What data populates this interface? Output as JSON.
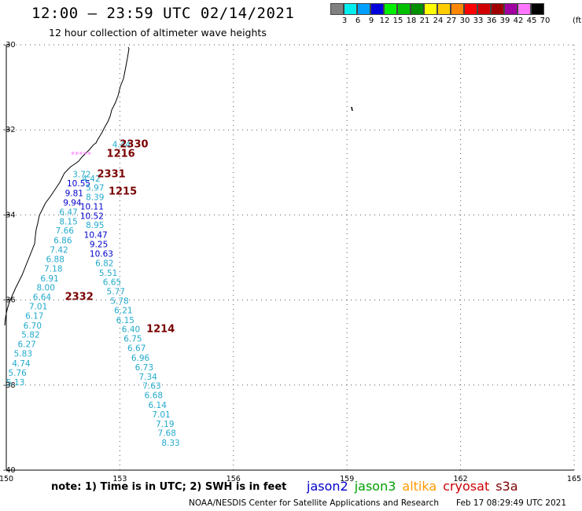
{
  "header": {
    "title": "12:00 – 23:59 UTC 02/14/2021",
    "subtitle": "12 hour collection of altimeter wave heights"
  },
  "legend": {
    "unit": "(ft)",
    "bins": [
      {
        "label": "3",
        "color": "#808080"
      },
      {
        "label": "6",
        "color": "#00eeee"
      },
      {
        "label": "9",
        "color": "#00a0ff"
      },
      {
        "label": "12",
        "color": "#0000dd"
      },
      {
        "label": "15",
        "color": "#00ee00"
      },
      {
        "label": "18",
        "color": "#00c000"
      },
      {
        "label": "21",
        "color": "#009000"
      },
      {
        "label": "24",
        "color": "#ffff00"
      },
      {
        "label": "27",
        "color": "#ffcc00"
      },
      {
        "label": "30",
        "color": "#ff8800"
      },
      {
        "label": "33",
        "color": "#ff0000"
      },
      {
        "label": "36",
        "color": "#d00000"
      },
      {
        "label": "39",
        "color": "#a00000"
      },
      {
        "label": "42",
        "color": "#a000a0"
      },
      {
        "label": "45",
        "color": "#ff77ff"
      },
      {
        "label": "70",
        "color": "#000000"
      }
    ]
  },
  "map": {
    "lat_ticks": [
      "-30",
      "-32",
      "-34",
      "-36",
      "-38",
      "-40"
    ],
    "lon_ticks": [
      "150",
      "153",
      "156",
      "159",
      "162",
      "165"
    ],
    "wave_points": [
      {
        "t": "4.44",
        "lon": 152.8,
        "lat": -32.41,
        "c": "#22aacc"
      },
      {
        "t": "*****",
        "lon": 151.7,
        "lat": -32.65,
        "c": "#ff77ff"
      },
      {
        "t": "3.72",
        "lon": 151.75,
        "lat": -33.11,
        "c": "#22aacc"
      },
      {
        "t": "4.42",
        "lon": 152.0,
        "lat": -33.22,
        "c": "#22aacc"
      },
      {
        "t": "10.55",
        "lon": 151.6,
        "lat": -33.33,
        "c": "#0000cc"
      },
      {
        "t": "5.97",
        "lon": 152.1,
        "lat": -33.43,
        "c": "#22aacc"
      },
      {
        "t": "9.81",
        "lon": 151.55,
        "lat": -33.56,
        "c": "#0000cc"
      },
      {
        "t": "8.39",
        "lon": 152.1,
        "lat": -33.65,
        "c": "#22aacc"
      },
      {
        "t": "9.94",
        "lon": 151.5,
        "lat": -33.78,
        "c": "#0000cc"
      },
      {
        "t": "10.11",
        "lon": 151.95,
        "lat": -33.87,
        "c": "#0000cc"
      },
      {
        "t": "6.47",
        "lon": 151.4,
        "lat": -34.0,
        "c": "#22aacc"
      },
      {
        "t": "10.52",
        "lon": 151.95,
        "lat": -34.09,
        "c": "#0000cc"
      },
      {
        "t": "8.15",
        "lon": 151.4,
        "lat": -34.22,
        "c": "#22aacc"
      },
      {
        "t": "8.95",
        "lon": 152.1,
        "lat": -34.31,
        "c": "#22aacc"
      },
      {
        "t": "7.66",
        "lon": 151.3,
        "lat": -34.44,
        "c": "#22aacc"
      },
      {
        "t": "10.47",
        "lon": 152.05,
        "lat": -34.54,
        "c": "#0000cc"
      },
      {
        "t": "6.86",
        "lon": 151.25,
        "lat": -34.67,
        "c": "#22aacc"
      },
      {
        "t": "9.25",
        "lon": 152.2,
        "lat": -34.76,
        "c": "#0000cc"
      },
      {
        "t": "7.42",
        "lon": 151.15,
        "lat": -34.89,
        "c": "#22aacc"
      },
      {
        "t": "10.63",
        "lon": 152.2,
        "lat": -34.98,
        "c": "#0000cc"
      },
      {
        "t": "6.88",
        "lon": 151.05,
        "lat": -35.11,
        "c": "#22aacc"
      },
      {
        "t": "6.82",
        "lon": 152.35,
        "lat": -35.2,
        "c": "#22aacc"
      },
      {
        "t": "7.18",
        "lon": 151.0,
        "lat": -35.33,
        "c": "#22aacc"
      },
      {
        "t": "5.51",
        "lon": 152.45,
        "lat": -35.43,
        "c": "#22aacc"
      },
      {
        "t": "6.91",
        "lon": 150.9,
        "lat": -35.56,
        "c": "#22aacc"
      },
      {
        "t": "6.65",
        "lon": 152.55,
        "lat": -35.65,
        "c": "#22aacc"
      },
      {
        "t": "8.00",
        "lon": 150.8,
        "lat": -35.78,
        "c": "#22aacc"
      },
      {
        "t": "5.77",
        "lon": 152.65,
        "lat": -35.87,
        "c": "#22aacc"
      },
      {
        "t": "6.64",
        "lon": 150.7,
        "lat": -36.0,
        "c": "#22aacc"
      },
      {
        "t": "5.78",
        "lon": 152.75,
        "lat": -36.09,
        "c": "#22aacc"
      },
      {
        "t": "7.01",
        "lon": 150.6,
        "lat": -36.22,
        "c": "#22aacc"
      },
      {
        "t": "6.21",
        "lon": 152.85,
        "lat": -36.31,
        "c": "#22aacc"
      },
      {
        "t": "6.17",
        "lon": 150.5,
        "lat": -36.44,
        "c": "#22aacc"
      },
      {
        "t": "6.15",
        "lon": 152.9,
        "lat": -36.54,
        "c": "#22aacc"
      },
      {
        "t": "6.70",
        "lon": 150.45,
        "lat": -36.67,
        "c": "#22aacc"
      },
      {
        "t": "6.40",
        "lon": 153.05,
        "lat": -36.76,
        "c": "#22aacc"
      },
      {
        "t": "5.82",
        "lon": 150.4,
        "lat": -36.89,
        "c": "#22aacc"
      },
      {
        "t": "6.75",
        "lon": 153.1,
        "lat": -36.98,
        "c": "#22aacc"
      },
      {
        "t": "6.27",
        "lon": 150.3,
        "lat": -37.11,
        "c": "#22aacc"
      },
      {
        "t": "6.67",
        "lon": 153.2,
        "lat": -37.2,
        "c": "#22aacc"
      },
      {
        "t": "5.83",
        "lon": 150.2,
        "lat": -37.33,
        "c": "#22aacc"
      },
      {
        "t": "6.96",
        "lon": 153.3,
        "lat": -37.43,
        "c": "#22aacc"
      },
      {
        "t": "4.74",
        "lon": 150.15,
        "lat": -37.56,
        "c": "#22aacc"
      },
      {
        "t": "6.73",
        "lon": 153.4,
        "lat": -37.65,
        "c": "#22aacc"
      },
      {
        "t": "5.76",
        "lon": 150.05,
        "lat": -37.78,
        "c": "#22aacc"
      },
      {
        "t": "7.34",
        "lon": 153.5,
        "lat": -37.87,
        "c": "#22aacc"
      },
      {
        "t": "5.13",
        "lon": 150.0,
        "lat": -38.0,
        "c": "#22aacc"
      },
      {
        "t": "7.63",
        "lon": 153.6,
        "lat": -38.09,
        "c": "#22aacc"
      },
      {
        "t": "6.68",
        "lon": 153.65,
        "lat": -38.31,
        "c": "#22aacc"
      },
      {
        "t": "6.14",
        "lon": 153.75,
        "lat": -38.54,
        "c": "#22aacc"
      },
      {
        "t": "7.01",
        "lon": 153.85,
        "lat": -38.76,
        "c": "#22aacc"
      },
      {
        "t": "7.19",
        "lon": 153.95,
        "lat": -38.98,
        "c": "#22aacc"
      },
      {
        "t": "7.68",
        "lon": 154.0,
        "lat": -39.2,
        "c": "#22aacc"
      },
      {
        "t": "8.33",
        "lon": 154.1,
        "lat": -39.43,
        "c": "#22aacc"
      }
    ],
    "time_labels": [
      {
        "t": "2330",
        "lon": 153.0,
        "lat": -32.41
      },
      {
        "t": "1216",
        "lon": 152.65,
        "lat": -32.63
      },
      {
        "t": "2331",
        "lon": 152.4,
        "lat": -33.11
      },
      {
        "t": "1215",
        "lon": 152.7,
        "lat": -33.52
      },
      {
        "t": "2332",
        "lon": 151.55,
        "lat": -36.0
      },
      {
        "t": "1214",
        "lon": 153.7,
        "lat": -36.76
      }
    ]
  },
  "note": "note:  1) Time is in UTC; 2) SWH is in feet",
  "satellites": [
    {
      "name": "jason2",
      "color": "#0000cc"
    },
    {
      "name": "jason3",
      "color": "#00a000"
    },
    {
      "name": "altika",
      "color": "#ff9900"
    },
    {
      "name": "cryosat",
      "color": "#cc0000"
    },
    {
      "name": "s3a",
      "color": "#7a0000"
    }
  ],
  "credit": "NOAA/NESDIS Center for Satellite Applications and Research",
  "timestamp": "Feb 17 08:29:49 UTC 2021"
}
